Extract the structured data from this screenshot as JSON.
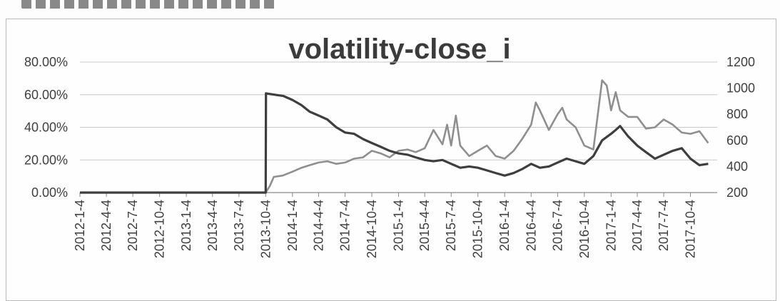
{
  "chart_data": {
    "type": "line",
    "title": "volatility-close_i",
    "xlabel": "",
    "ylabel": "",
    "left_ylim": [
      0,
      80
    ],
    "right_ylim": [
      200,
      1200
    ],
    "left_ticks": [
      "0.00%",
      "20.00%",
      "40.00%",
      "60.00%",
      "80.00%"
    ],
    "right_ticks": [
      "200",
      "400",
      "600",
      "800",
      "1000",
      "1200"
    ],
    "x_ticks": [
      "2012-1-4",
      "2012-4-4",
      "2012-7-4",
      "2012-10-4",
      "2013-1-4",
      "2013-4-4",
      "2013-7-4",
      "2013-10-4",
      "2014-1-4",
      "2014-4-4",
      "2014-7-4",
      "2014-10-4",
      "2015-1-4",
      "2015-4-4",
      "2015-7-4",
      "2015-10-4",
      "2016-1-4",
      "2016-4-4",
      "2016-7-4",
      "2016-10-4",
      "2017-1-4",
      "2017-4-4",
      "2017-7-4",
      "2017-10-4"
    ],
    "grid": true,
    "legend": "none",
    "series": [
      {
        "axis": "right",
        "color": "#8f8f8f",
        "points": [
          [
            "2012-1-4",
            200
          ],
          [
            "2013-10-4",
            200
          ],
          [
            "2013-10-18",
            250
          ],
          [
            "2013-11-1",
            320
          ],
          [
            "2013-12-1",
            330
          ],
          [
            "2014-1-4",
            360
          ],
          [
            "2014-2-4",
            390
          ],
          [
            "2014-3-4",
            410
          ],
          [
            "2014-4-4",
            430
          ],
          [
            "2014-5-4",
            440
          ],
          [
            "2014-6-4",
            420
          ],
          [
            "2014-7-4",
            430
          ],
          [
            "2014-8-4",
            460
          ],
          [
            "2014-9-4",
            470
          ],
          [
            "2014-10-4",
            520
          ],
          [
            "2014-11-4",
            500
          ],
          [
            "2014-12-4",
            470
          ],
          [
            "2015-1-4",
            520
          ],
          [
            "2015-2-4",
            530
          ],
          [
            "2015-3-4",
            510
          ],
          [
            "2015-4-4",
            540
          ],
          [
            "2015-5-4",
            680
          ],
          [
            "2015-6-4",
            570
          ],
          [
            "2015-6-20",
            720
          ],
          [
            "2015-7-4",
            560
          ],
          [
            "2015-7-20",
            790
          ],
          [
            "2015-8-4",
            560
          ],
          [
            "2015-9-4",
            480
          ],
          [
            "2015-10-4",
            520
          ],
          [
            "2015-11-4",
            560
          ],
          [
            "2015-12-4",
            480
          ],
          [
            "2016-1-4",
            460
          ],
          [
            "2016-2-4",
            520
          ],
          [
            "2016-3-4",
            610
          ],
          [
            "2016-4-4",
            720
          ],
          [
            "2016-4-20",
            890
          ],
          [
            "2016-5-4",
            830
          ],
          [
            "2016-6-4",
            680
          ],
          [
            "2016-7-4",
            800
          ],
          [
            "2016-7-20",
            850
          ],
          [
            "2016-8-4",
            760
          ],
          [
            "2016-9-4",
            700
          ],
          [
            "2016-10-4",
            560
          ],
          [
            "2016-11-4",
            530
          ],
          [
            "2016-12-4",
            1060
          ],
          [
            "2016-12-20",
            1020
          ],
          [
            "2017-1-4",
            830
          ],
          [
            "2017-1-20",
            970
          ],
          [
            "2017-2-4",
            830
          ],
          [
            "2017-3-4",
            780
          ],
          [
            "2017-4-4",
            780
          ],
          [
            "2017-5-4",
            690
          ],
          [
            "2017-6-4",
            700
          ],
          [
            "2017-7-4",
            760
          ],
          [
            "2017-8-4",
            720
          ],
          [
            "2017-9-4",
            660
          ],
          [
            "2017-10-4",
            650
          ],
          [
            "2017-11-4",
            670
          ],
          [
            "2017-12-4",
            580
          ]
        ]
      },
      {
        "axis": "right",
        "color": "#3e3e3e",
        "points": [
          [
            "2012-1-4",
            200
          ],
          [
            "2013-10-4",
            200
          ],
          [
            "2013-10-5",
            960
          ],
          [
            "2013-11-4",
            950
          ],
          [
            "2013-12-4",
            940
          ],
          [
            "2014-1-4",
            910
          ],
          [
            "2014-2-4",
            870
          ],
          [
            "2014-3-4",
            820
          ],
          [
            "2014-4-4",
            790
          ],
          [
            "2014-5-4",
            760
          ],
          [
            "2014-6-4",
            700
          ],
          [
            "2014-7-4",
            660
          ],
          [
            "2014-8-4",
            650
          ],
          [
            "2014-9-4",
            610
          ],
          [
            "2014-10-4",
            580
          ],
          [
            "2014-11-4",
            550
          ],
          [
            "2014-12-4",
            520
          ],
          [
            "2015-1-4",
            500
          ],
          [
            "2015-2-4",
            490
          ],
          [
            "2015-3-4",
            470
          ],
          [
            "2015-4-4",
            450
          ],
          [
            "2015-5-4",
            440
          ],
          [
            "2015-6-4",
            450
          ],
          [
            "2015-7-4",
            420
          ],
          [
            "2015-8-4",
            390
          ],
          [
            "2015-9-4",
            400
          ],
          [
            "2015-10-4",
            390
          ],
          [
            "2015-11-4",
            370
          ],
          [
            "2015-12-4",
            350
          ],
          [
            "2016-1-4",
            330
          ],
          [
            "2016-2-4",
            350
          ],
          [
            "2016-3-4",
            380
          ],
          [
            "2016-4-4",
            420
          ],
          [
            "2016-5-4",
            390
          ],
          [
            "2016-6-4",
            400
          ],
          [
            "2016-7-4",
            430
          ],
          [
            "2016-8-4",
            460
          ],
          [
            "2016-9-4",
            440
          ],
          [
            "2016-10-4",
            420
          ],
          [
            "2016-11-4",
            480
          ],
          [
            "2016-12-4",
            600
          ],
          [
            "2017-1-4",
            650
          ],
          [
            "2017-1-20",
            680
          ],
          [
            "2017-2-4",
            710
          ],
          [
            "2017-3-4",
            630
          ],
          [
            "2017-4-4",
            560
          ],
          [
            "2017-5-4",
            510
          ],
          [
            "2017-6-4",
            460
          ],
          [
            "2017-7-4",
            490
          ],
          [
            "2017-8-4",
            520
          ],
          [
            "2017-9-4",
            540
          ],
          [
            "2017-10-4",
            460
          ],
          [
            "2017-11-4",
            410
          ],
          [
            "2017-12-4",
            420
          ]
        ]
      }
    ]
  }
}
